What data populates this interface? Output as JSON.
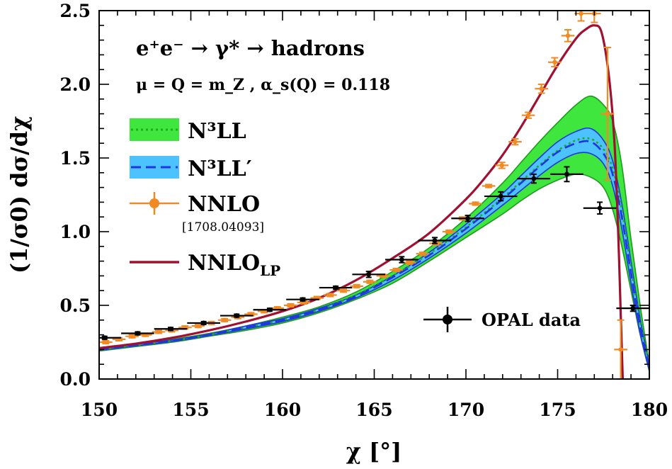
{
  "chart_data": {
    "type": "line",
    "xlabel": "χ [°]",
    "ylabel": "(1/σ0) dσ/dχ",
    "xlim": [
      150,
      180
    ],
    "ylim": [
      0,
      2.5
    ],
    "x_ticks": [
      "150",
      "155",
      "160",
      "165",
      "170",
      "175",
      "180"
    ],
    "y_ticks": [
      "0.0",
      "0.5",
      "1.0",
      "1.5",
      "2.0",
      "2.5"
    ],
    "process": "e⁺e⁻ → γ* → hadrons",
    "params": "μ = Q = m_Z ,   α_s(Q) = 0.118",
    "colors": {
      "n3ll_band": "#3ee63e",
      "n3ll_edge": "#1f9a1f",
      "n3ll_line": "#22aa22",
      "n3llp_band": "#4cc2ff",
      "n3llp_edge": "#1f35e0",
      "n3llp_line": "#1f35e0",
      "nnlo": "#f08a24",
      "nnlo_lp": "#a01030",
      "opal": "#000000"
    },
    "legend": {
      "n3ll": "N³LL",
      "n3llp": "N³LL′",
      "nnlo": "NNLO",
      "nnlo_ref": "[1708.04093]",
      "nnlo_lp": "NNLO",
      "nnlo_lp_sub": "LP",
      "opal": "OPAL data"
    },
    "series": [
      {
        "name": "N³LL",
        "type": "band",
        "x": [
          150,
          152,
          154,
          156,
          158,
          160,
          162,
          164,
          166,
          168,
          170,
          172,
          173,
          174,
          175,
          176,
          176.8,
          177.5,
          178,
          178.5,
          179,
          179.5,
          180
        ],
        "central": [
          0.2,
          0.23,
          0.26,
          0.3,
          0.35,
          0.4,
          0.47,
          0.57,
          0.7,
          0.85,
          1.03,
          1.23,
          1.34,
          1.45,
          1.55,
          1.62,
          1.63,
          1.56,
          1.43,
          1.15,
          0.75,
          0.38,
          0.1
        ],
        "lower": [
          0.19,
          0.22,
          0.25,
          0.29,
          0.33,
          0.38,
          0.45,
          0.54,
          0.65,
          0.8,
          0.96,
          1.12,
          1.21,
          1.29,
          1.35,
          1.39,
          1.37,
          1.3,
          1.15,
          0.9,
          0.6,
          0.3,
          0.05
        ],
        "upper": [
          0.21,
          0.24,
          0.27,
          0.31,
          0.36,
          0.42,
          0.49,
          0.59,
          0.73,
          0.89,
          1.09,
          1.33,
          1.47,
          1.61,
          1.74,
          1.86,
          1.92,
          1.86,
          1.75,
          1.45,
          0.95,
          0.5,
          0.1
        ]
      },
      {
        "name": "N³LL′",
        "type": "band",
        "x": [
          150,
          152,
          154,
          156,
          158,
          160,
          162,
          164,
          166,
          168,
          170,
          172,
          173,
          174,
          175,
          176,
          176.8,
          177.5,
          178,
          178.5,
          179,
          179.5,
          180
        ],
        "central": [
          0.2,
          0.23,
          0.26,
          0.3,
          0.35,
          0.4,
          0.47,
          0.56,
          0.69,
          0.84,
          1.02,
          1.22,
          1.33,
          1.44,
          1.54,
          1.6,
          1.61,
          1.53,
          1.39,
          1.1,
          0.72,
          0.36,
          0.08
        ],
        "lower": [
          0.195,
          0.225,
          0.255,
          0.295,
          0.34,
          0.39,
          0.46,
          0.55,
          0.67,
          0.82,
          0.99,
          1.18,
          1.28,
          1.38,
          1.47,
          1.53,
          1.53,
          1.46,
          1.31,
          1.02,
          0.65,
          0.31,
          0.06
        ],
        "upper": [
          0.205,
          0.235,
          0.265,
          0.305,
          0.36,
          0.41,
          0.48,
          0.57,
          0.7,
          0.86,
          1.05,
          1.26,
          1.38,
          1.5,
          1.61,
          1.68,
          1.7,
          1.62,
          1.48,
          1.19,
          0.8,
          0.41,
          0.1
        ]
      },
      {
        "name": "NNLO_LP",
        "type": "line",
        "x": [
          150,
          152,
          154,
          156,
          158,
          160,
          162,
          164,
          166,
          168,
          170,
          171,
          172,
          173,
          174,
          175,
          176,
          176.5,
          177,
          177.4,
          177.8,
          178.1,
          178.3,
          178.45,
          178.55
        ],
        "y": [
          0.21,
          0.24,
          0.28,
          0.33,
          0.39,
          0.46,
          0.55,
          0.67,
          0.82,
          0.99,
          1.22,
          1.36,
          1.52,
          1.71,
          1.92,
          2.13,
          2.31,
          2.37,
          2.4,
          2.35,
          2.05,
          1.6,
          1.0,
          0.4,
          0.0
        ]
      },
      {
        "name": "NNLO",
        "type": "errorbar",
        "x": [
          150.36,
          151.08,
          151.8,
          152.52,
          153.24,
          153.96,
          154.68,
          155.4,
          156.12,
          156.84,
          157.56,
          158.28,
          159.0,
          159.72,
          160.44,
          161.16,
          161.88,
          162.6,
          163.32,
          164.04,
          164.76,
          165.48,
          166.2,
          166.92,
          167.64,
          168.36,
          169.08,
          169.8,
          170.52,
          171.24,
          171.96,
          172.68,
          173.4,
          174.12,
          174.84,
          175.56,
          176.28,
          177.0,
          177.72,
          178.44
        ],
        "y": [
          0.25,
          0.27,
          0.29,
          0.3,
          0.32,
          0.33,
          0.35,
          0.36,
          0.38,
          0.4,
          0.42,
          0.44,
          0.46,
          0.48,
          0.5,
          0.52,
          0.55,
          0.57,
          0.6,
          0.63,
          0.66,
          0.7,
          0.74,
          0.79,
          0.85,
          0.92,
          1.0,
          1.09,
          1.19,
          1.31,
          1.45,
          1.61,
          1.79,
          1.97,
          2.15,
          2.33,
          2.48,
          2.48,
          1.8,
          0.2
        ],
        "xerr": 0.36,
        "yerr": [
          0.01,
          0.01,
          0.01,
          0.01,
          0.01,
          0.01,
          0.01,
          0.01,
          0.01,
          0.01,
          0.01,
          0.01,
          0.01,
          0.01,
          0.01,
          0.01,
          0.01,
          0.01,
          0.01,
          0.01,
          0.01,
          0.01,
          0.01,
          0.01,
          0.01,
          0.01,
          0.01,
          0.01,
          0.01,
          0.01,
          0.02,
          0.02,
          0.02,
          0.03,
          0.03,
          0.04,
          0.05,
          0.06,
          0.45,
          0.2
        ]
      },
      {
        "name": "OPAL data",
        "type": "errorbar",
        "x": [
          150.3,
          152.1,
          153.9,
          155.7,
          157.5,
          159.3,
          161.1,
          162.9,
          164.7,
          166.5,
          168.3,
          170.1,
          171.9,
          173.7,
          175.5,
          177.3,
          179.1
        ],
        "y": [
          0.28,
          0.31,
          0.34,
          0.38,
          0.43,
          0.47,
          0.54,
          0.62,
          0.71,
          0.81,
          0.94,
          1.09,
          1.24,
          1.36,
          1.39,
          1.16,
          0.48
        ],
        "xerr": 0.9,
        "yerr": [
          0.01,
          0.01,
          0.01,
          0.01,
          0.01,
          0.01,
          0.01,
          0.01,
          0.02,
          0.02,
          0.02,
          0.02,
          0.03,
          0.03,
          0.05,
          0.04,
          0.02
        ]
      }
    ]
  }
}
